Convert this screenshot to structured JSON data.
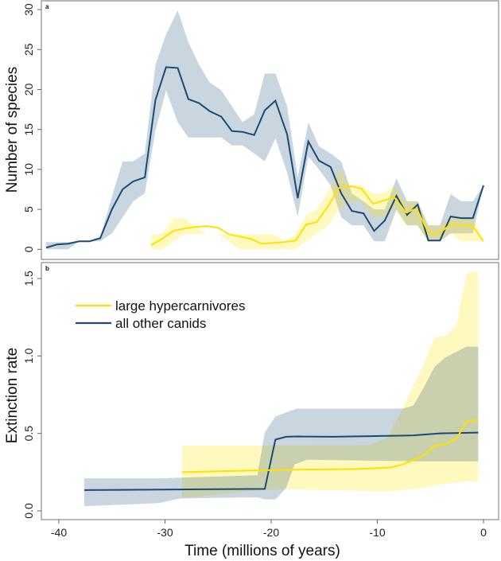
{
  "colors": {
    "hyper_line": "#ffe100",
    "hyper_band": "#ffe600",
    "other_line": "#1c4a75",
    "other_band": "#1f4e79",
    "frame": "#8a8a8a"
  },
  "chart_data": [
    {
      "type": "line",
      "panel_label": "a",
      "xlabel": "Time (millions of years)",
      "ylabel": "Number of species",
      "xlim": [
        -42,
        0.8
      ],
      "ylim": [
        0,
        30
      ],
      "yticks": [
        "0",
        "5",
        "10",
        "15",
        "20",
        "25",
        "30"
      ],
      "ytick_values": [
        0,
        5,
        10,
        15,
        20,
        25,
        30
      ],
      "series": [
        {
          "name": "all other canids",
          "x": [
            -41.2,
            -40.2,
            -39.1,
            -38.1,
            -37.1,
            -36.1,
            -35.0,
            -34.0,
            -33.0,
            -31.9,
            -30.9,
            -29.9,
            -28.8,
            -27.8,
            -26.8,
            -25.8,
            -24.7,
            -23.7,
            -22.7,
            -21.6,
            -20.6,
            -19.6,
            -18.5,
            -17.5,
            -16.5,
            -15.5,
            -14.4,
            -13.4,
            -12.4,
            -11.3,
            -10.3,
            -9.3,
            -8.2,
            -7.2,
            -6.2,
            -5.2,
            -4.1,
            -3.1,
            -2.1,
            -1.0,
            0
          ],
          "y": [
            0.2,
            0.6,
            0.7,
            1.0,
            1.0,
            1.4,
            5.0,
            7.5,
            8.5,
            9.0,
            18.7,
            22.8,
            22.7,
            18.8,
            18.3,
            17.3,
            16.6,
            14.8,
            14.7,
            14.3,
            17.4,
            18.6,
            14.4,
            6.4,
            13.5,
            11.1,
            10.3,
            7.0,
            4.8,
            4.5,
            2.3,
            3.6,
            6.7,
            4.3,
            5.6,
            1.1,
            1.1,
            4.1,
            3.9,
            3.9,
            8.0
          ],
          "upper": [
            0.9,
            0.9,
            0.9,
            1.0,
            1.0,
            1.5,
            6.6,
            11.0,
            11.0,
            12.0,
            23.1,
            26.9,
            29.9,
            25.9,
            23.1,
            20.9,
            19.9,
            17.9,
            15.9,
            16.9,
            22.0,
            22.0,
            17.9,
            9.0,
            15.9,
            12.9,
            12.0,
            11.0,
            7.0,
            6.0,
            5.0,
            5.0,
            8.9,
            6.0,
            6.0,
            3.0,
            3.0,
            6.9,
            6.0,
            6.0,
            8.0
          ],
          "lower": [
            0,
            0,
            0,
            1.0,
            1.0,
            1.0,
            2.0,
            4.0,
            6.0,
            7.0,
            14.9,
            19.9,
            15.9,
            14.0,
            14.0,
            14.0,
            14.0,
            13.0,
            13.0,
            12.0,
            11.0,
            13.9,
            9.6,
            4.1,
            11.6,
            10.0,
            8.0,
            4.0,
            3.0,
            3.0,
            1.0,
            1.0,
            5.0,
            3.0,
            3.0,
            1.0,
            1.0,
            2.0,
            2.0,
            2.0,
            8.0
          ]
        },
        {
          "name": "large hypercarnivores",
          "x": [
            -31.3,
            -30.3,
            -29.2,
            -28.2,
            -27.1,
            -26.1,
            -25.0,
            -24.0,
            -23.0,
            -21.9,
            -20.9,
            -19.8,
            -18.8,
            -17.7,
            -16.7,
            -15.7,
            -14.6,
            -13.6,
            -12.5,
            -11.5,
            -10.4,
            -9.4,
            -8.4,
            -7.3,
            -6.3,
            -5.2,
            -4.2,
            -3.1,
            -2.1,
            -1.0,
            0
          ],
          "y": [
            0.5,
            1.3,
            2.3,
            2.6,
            2.8,
            2.9,
            2.7,
            1.9,
            1.6,
            1.3,
            0.7,
            0.8,
            0.9,
            1.1,
            3.1,
            3.4,
            5.5,
            7.7,
            7.9,
            7.6,
            5.7,
            6.1,
            6.5,
            4.6,
            5.1,
            2.1,
            2.0,
            3.1,
            3.0,
            2.9,
            1.0
          ],
          "upper": [
            1.9,
            1.9,
            3.9,
            3.9,
            2.9,
            1.9,
            1.9,
            1.9,
            1.9,
            1.9,
            1.9,
            1.9,
            1.0,
            1.9,
            4.3,
            5.0,
            7.3,
            10.0,
            8.0,
            8.0,
            7.0,
            7.0,
            8.0,
            6.0,
            6.0,
            3.0,
            3.0,
            4.0,
            4.0,
            4.0,
            1.0
          ],
          "lower": [
            0,
            0,
            1.0,
            1.9,
            1.9,
            1.9,
            1.9,
            1.0,
            0,
            0,
            0,
            0,
            0,
            0,
            1.0,
            2.0,
            3.0,
            5.0,
            6.0,
            6.0,
            4.0,
            4.0,
            5.0,
            3.0,
            3.0,
            1.0,
            1.0,
            2.0,
            1.0,
            1.0,
            1.0
          ]
        }
      ]
    },
    {
      "type": "line",
      "panel_label": "b",
      "xlabel": "Time (millions of years)",
      "ylabel": "Extinction rate",
      "xlim": [
        -42,
        0.8
      ],
      "ylim": [
        0,
        1.6
      ],
      "xticks": [
        "-40",
        "-30",
        "-20",
        "-10",
        "0"
      ],
      "xtick_values": [
        -40,
        -30,
        -20,
        -10,
        0
      ],
      "yticks": [
        "0.0",
        "0.5",
        "1.0",
        "1.5"
      ],
      "ytick_values": [
        0,
        0.5,
        1.0,
        1.5
      ],
      "legend": {
        "placement": "top-left",
        "entries": [
          "large hypercarnivores",
          "all other canids"
        ]
      },
      "series": [
        {
          "name": "all other canids",
          "line": [
            [
              -37.6,
              0.134
            ],
            [
              -20.6,
              0.142
            ],
            [
              -19.6,
              0.46
            ],
            [
              -18.6,
              0.478
            ],
            [
              -17.6,
              0.48
            ],
            [
              -14.1,
              0.478
            ],
            [
              -6.6,
              0.487
            ],
            [
              -4.1,
              0.5
            ],
            [
              -0.5,
              0.505
            ]
          ],
          "upper": [
            [
              -37.6,
              0.21
            ],
            [
              -30.6,
              0.21
            ],
            [
              -21.3,
              0.23
            ],
            [
              -20.6,
              0.505
            ],
            [
              -19.6,
              0.61
            ],
            [
              -17.6,
              0.66
            ],
            [
              -7.6,
              0.66
            ],
            [
              -6.6,
              0.68
            ],
            [
              -5.6,
              0.8
            ],
            [
              -4.6,
              0.93
            ],
            [
              -3.6,
              0.99
            ],
            [
              -1.6,
              1.06
            ],
            [
              -0.5,
              1.06
            ]
          ],
          "lower": [
            [
              -37.6,
              0.03
            ],
            [
              -30.6,
              0.05
            ],
            [
              -28.6,
              0.08
            ],
            [
              -21.3,
              0.088
            ],
            [
              -20.6,
              0.074
            ],
            [
              -19.6,
              0.074
            ],
            [
              -18.6,
              0.147
            ],
            [
              -17.8,
              0.3
            ],
            [
              -16.6,
              0.33
            ],
            [
              -6.6,
              0.32
            ],
            [
              -0.5,
              0.32
            ]
          ]
        },
        {
          "name": "large hypercarnivores",
          "line": [
            [
              -28.4,
              0.25
            ],
            [
              -18.6,
              0.265
            ],
            [
              -11.6,
              0.27
            ],
            [
              -8.8,
              0.28
            ],
            [
              -7.6,
              0.3
            ],
            [
              -5.8,
              0.35
            ],
            [
              -4.6,
              0.42
            ],
            [
              -3.6,
              0.43
            ],
            [
              -2.5,
              0.47
            ],
            [
              -1.6,
              0.58
            ],
            [
              -0.5,
              0.585
            ]
          ],
          "upper": [
            [
              -28.4,
              0.42
            ],
            [
              -10.8,
              0.425
            ],
            [
              -9.1,
              0.47
            ],
            [
              -7.6,
              0.66
            ],
            [
              -6.6,
              0.81
            ],
            [
              -5.6,
              0.95
            ],
            [
              -4.6,
              1.12
            ],
            [
              -3.6,
              1.13
            ],
            [
              -2.6,
              1.19
            ],
            [
              -1.6,
              1.53
            ],
            [
              -0.5,
              1.55
            ]
          ],
          "lower": [
            [
              -28.4,
              0.082
            ],
            [
              -21.6,
              0.13
            ],
            [
              -18.6,
              0.14
            ],
            [
              -9.1,
              0.126
            ],
            [
              -5.6,
              0.147
            ],
            [
              -4.1,
              0.17
            ],
            [
              -1.6,
              0.19
            ],
            [
              -0.5,
              0.19
            ]
          ]
        }
      ]
    }
  ]
}
